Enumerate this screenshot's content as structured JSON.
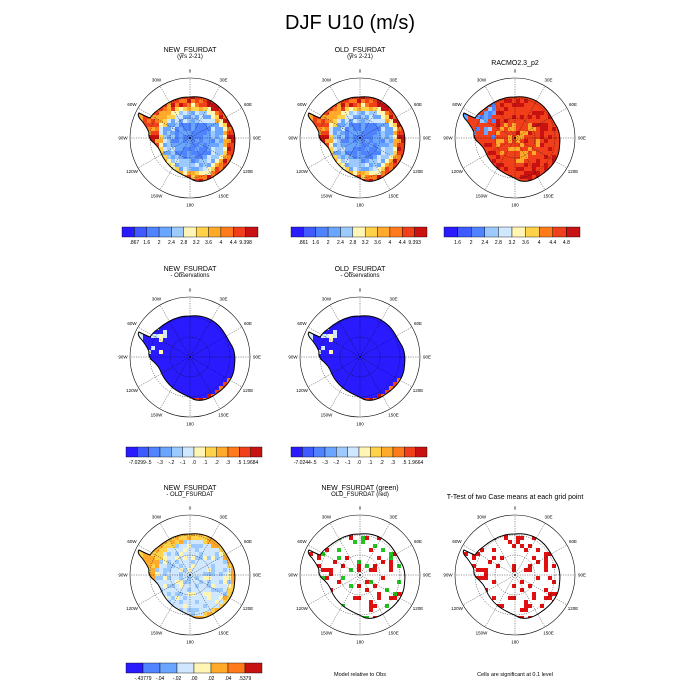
{
  "title": "DJF U10 (m/s)",
  "colors": {
    "palette": [
      "#2a1bff",
      "#3f5bff",
      "#4f83ff",
      "#6aa6ff",
      "#9ccaff",
      "#cfe7ff",
      "#fff6b5",
      "#ffd24a",
      "#ffaa2a",
      "#ff7a1a",
      "#f03f1a",
      "#c81212"
    ],
    "ocean": "#ffffff",
    "coast": "#000000",
    "green": "#22c422",
    "red": "#e01010"
  },
  "map": {
    "lon_labels": [
      "0",
      "30E",
      "60E",
      "90E",
      "120E",
      "150E",
      "180",
      "150W",
      "120W",
      "90W",
      "60W",
      "30W"
    ]
  },
  "panels": [
    {
      "id": "p1",
      "title": "NEW_FSURDAT",
      "subtitle": "(yrs 2-21)",
      "field": "mean",
      "colorbar": {
        "labels": [
          ".867",
          "1.6",
          "2",
          "2.4",
          "2.8",
          "3.2",
          "3.6",
          "4",
          "4.4",
          "9.398"
        ]
      }
    },
    {
      "id": "p2",
      "title": "OLD_FSURDAT",
      "subtitle": "(yrs 2-21)",
      "field": "mean",
      "colorbar": {
        "labels": [
          ".861",
          "1.6",
          "2",
          "2.4",
          "2.8",
          "3.2",
          "3.6",
          "4",
          "4.4",
          "9.393"
        ]
      }
    },
    {
      "id": "p3",
      "title": "RACMO2.3_p2",
      "subtitle": "",
      "field": "obs",
      "colorbar": {
        "labels": [
          "1.6",
          "2",
          "2.4",
          "2.8",
          "3.2",
          "3.6",
          "4",
          "4.4",
          "4.8"
        ]
      }
    },
    {
      "id": "p4",
      "title": "NEW_FSURDAT",
      "subtitle": "- Observations",
      "field": "bias",
      "colorbar": {
        "labels": [
          "-7.0299",
          "-.5",
          "-.3",
          "-.2",
          "-.1",
          ".0",
          ".1",
          ".2",
          ".3",
          ".5",
          "1.9684"
        ]
      }
    },
    {
      "id": "p5",
      "title": "OLD_FSURDAT",
      "subtitle": "- Observations",
      "field": "bias",
      "colorbar": {
        "labels": [
          "-7.0244",
          "-.5",
          "-.3",
          "-.2",
          "-.1",
          ".0",
          ".1",
          ".2",
          ".3",
          ".5",
          "1.9664"
        ]
      }
    },
    {
      "id": "p7",
      "title": "NEW_FSURDAT",
      "subtitle": "- OLD_FSURDAT",
      "field": "diff",
      "colorbar": {
        "labels": [
          "-.43779",
          "-.04",
          "-.02",
          ".00",
          ".02",
          ".04",
          ".5379"
        ]
      }
    },
    {
      "id": "p8",
      "title": "NEW_FSURDAT (green)",
      "subtitle": "OLD_FSURDAT (red)",
      "field": "rel",
      "note": "Model relative to Obs"
    },
    {
      "id": "p9",
      "title": "T-Test of two Case means at each grid point",
      "subtitle": "",
      "field": "ttest",
      "note": "Cells are significant at 0.1 level"
    }
  ]
}
